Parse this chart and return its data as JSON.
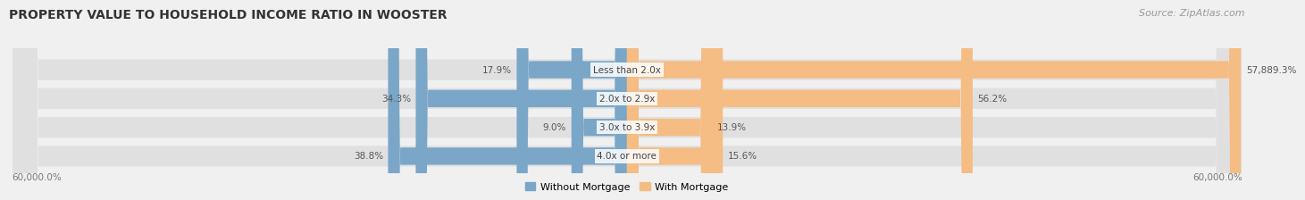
{
  "title": "PROPERTY VALUE TO HOUSEHOLD INCOME RATIO IN WOOSTER",
  "source": "Source: ZipAtlas.com",
  "categories": [
    "Less than 2.0x",
    "2.0x to 2.9x",
    "3.0x to 3.9x",
    "4.0x or more"
  ],
  "without_mortgage": [
    17.9,
    34.3,
    9.0,
    38.8
  ],
  "with_mortgage": [
    57889.3,
    56.2,
    13.9,
    15.6
  ],
  "without_mortgage_color": "#7aa6c8",
  "with_mortgage_color": "#f5bc84",
  "row_bg_color": "#e8e8e8",
  "xlabel_left": "60,000.0%",
  "xlabel_right": "60,000.0%",
  "legend_labels": [
    "Without Mortgage",
    "With Mortgage"
  ],
  "title_fontsize": 10,
  "source_fontsize": 8,
  "max_val": 60000.0
}
